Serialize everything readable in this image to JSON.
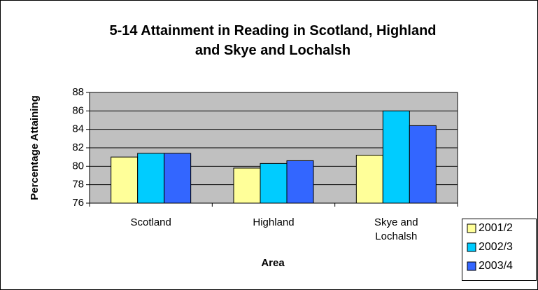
{
  "chart_data": {
    "type": "bar",
    "title": "5-14 Attainment in Reading in Scotland, Highland\nand Skye and Lochalsh",
    "x_label": "Area",
    "y_label": "Percentage Attaining",
    "categories": [
      "Scotland",
      "Highland",
      "Skye and\nLochalsh"
    ],
    "series": [
      {
        "name": "2001/2",
        "color": "#ffff99",
        "values": [
          81,
          79.8,
          81.2
        ]
      },
      {
        "name": "2002/3",
        "color": "#00ccff",
        "values": [
          81.4,
          80.3,
          86
        ]
      },
      {
        "name": "2003/4",
        "color": "#3366ff",
        "values": [
          81.4,
          80.6,
          84.4
        ]
      }
    ],
    "ylim": [
      76,
      88
    ],
    "yticks": [
      76,
      78,
      80,
      82,
      84,
      86,
      88
    ],
    "grid": true,
    "legend": "right"
  }
}
